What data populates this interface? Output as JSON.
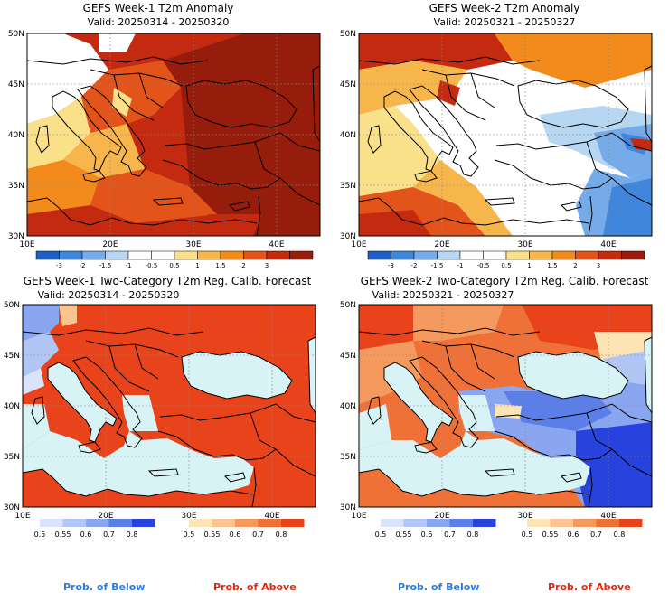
{
  "colors": {
    "sea": "#d8f3f6",
    "land_white": "#ffffff",
    "anomaly_scale": [
      "#1f5fc4",
      "#3f86dc",
      "#74abe8",
      "#b6d6f2",
      "#ffffff",
      "#ffffff",
      "#fbe08a",
      "#f7b64b",
      "#f28a1c",
      "#e2541a",
      "#c42a10",
      "#961c0b"
    ],
    "below_scale": [
      "#d9e3fb",
      "#b2c6f6",
      "#8aa6f0",
      "#5b7ee8",
      "#2742dd"
    ],
    "above_scale": [
      "#fde4b4",
      "#f9c48e",
      "#f59a5e",
      "#ef7137",
      "#e8431b"
    ]
  },
  "axis": {
    "lat_labels": [
      "50N",
      "45N",
      "40N",
      "35N",
      "30N"
    ],
    "lon_labels": [
      "10E",
      "20E",
      "30E",
      "40E"
    ]
  },
  "panels": [
    {
      "title": "GEFS Week-1 T2m Anomaly",
      "valid": "Valid: 20250314 - 20250320",
      "kind": "anomaly",
      "colorbar_labels": [
        "-3",
        "-2",
        "-1.5",
        "-1",
        "-0.5",
        "0.5",
        "1",
        "1.5",
        "2",
        "3"
      ]
    },
    {
      "title": "GEFS Week-2 T2m Anomaly",
      "valid": "Valid: 20250321 - 20250327",
      "kind": "anomaly",
      "colorbar_labels": [
        "-3",
        "-2",
        "-1.5",
        "-1",
        "-0.5",
        "0.5",
        "1",
        "1.5",
        "2",
        "3"
      ]
    },
    {
      "title": "GEFS Week-1 Two-Category T2m Reg. Calib. Forecast",
      "valid": "Valid: 20250314 - 20250320",
      "kind": "probability",
      "below_labels": [
        "0.5",
        "0.55",
        "0.6",
        "0.7",
        "0.8"
      ],
      "above_labels": [
        "0.5",
        "0.55",
        "0.6",
        "0.7",
        "0.8"
      ],
      "below_caption": "Prob. of Below",
      "above_caption": "Prob. of Above"
    },
    {
      "title": "GEFS Week-2 Two-Category T2m Reg. Calib. Forecast",
      "valid": "Valid: 20250321 - 20250327",
      "kind": "probability",
      "below_labels": [
        "0.5",
        "0.55",
        "0.6",
        "0.7",
        "0.8"
      ],
      "above_labels": [
        "0.5",
        "0.55",
        "0.6",
        "0.7",
        "0.8"
      ],
      "below_caption": "Prob. of Below",
      "above_caption": "Prob. of Above"
    }
  ]
}
